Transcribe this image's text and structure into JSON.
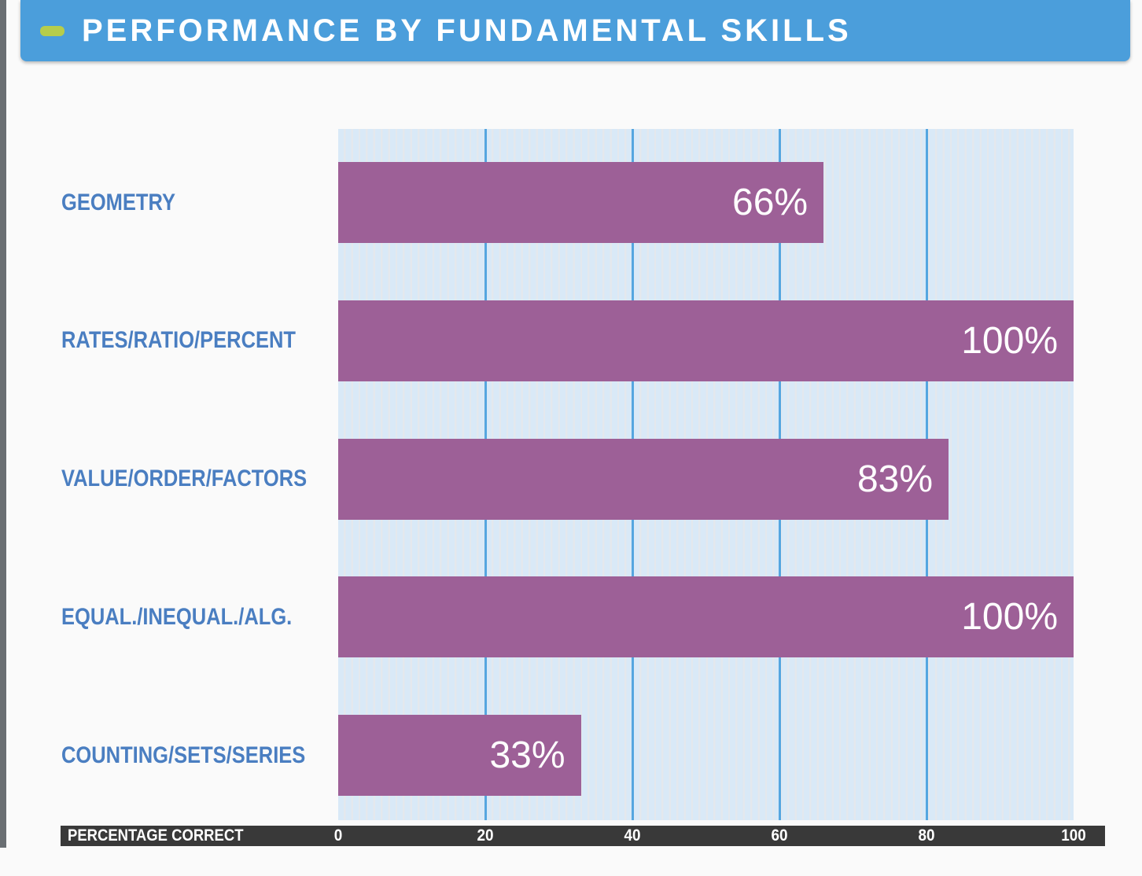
{
  "header": {
    "title": "PERFORMANCE BY FUNDAMENTAL SKILLS"
  },
  "chart_data": {
    "type": "bar",
    "orientation": "horizontal",
    "title": "PERFORMANCE BY FUNDAMENTAL SKILLS",
    "categories": [
      "GEOMETRY",
      "RATES/RATIO/PERCENT",
      "VALUE/ORDER/FACTORS",
      "EQUAL./INEQUAL./ALG.",
      "COUNTING/SETS/SERIES"
    ],
    "values": [
      66,
      100,
      83,
      100,
      33
    ],
    "value_labels": [
      "66%",
      "100%",
      "83%",
      "100%",
      "33%"
    ],
    "xlabel": "PERCENTAGE CORRECT",
    "xticks": [
      0,
      20,
      40,
      60,
      80,
      100
    ],
    "xlim": [
      0,
      100
    ],
    "grid": "vertical gridlines at 20/40/60/80, striped minor lines every 1 unit",
    "legend_position": "none",
    "colors": {
      "bar": "#9d6097",
      "value_text": "#ffffff",
      "category_label": "#4a7ec1",
      "plot_background": "#d9e9f7",
      "plot_stripe": "#e4e8ed",
      "gridline": "#55a6e0",
      "axis_bar": "#393939",
      "axis_text": "#ffffff",
      "header_background": "#4b9edb",
      "header_accent": "#b6cd4b",
      "page_background": "#fafafa"
    }
  }
}
